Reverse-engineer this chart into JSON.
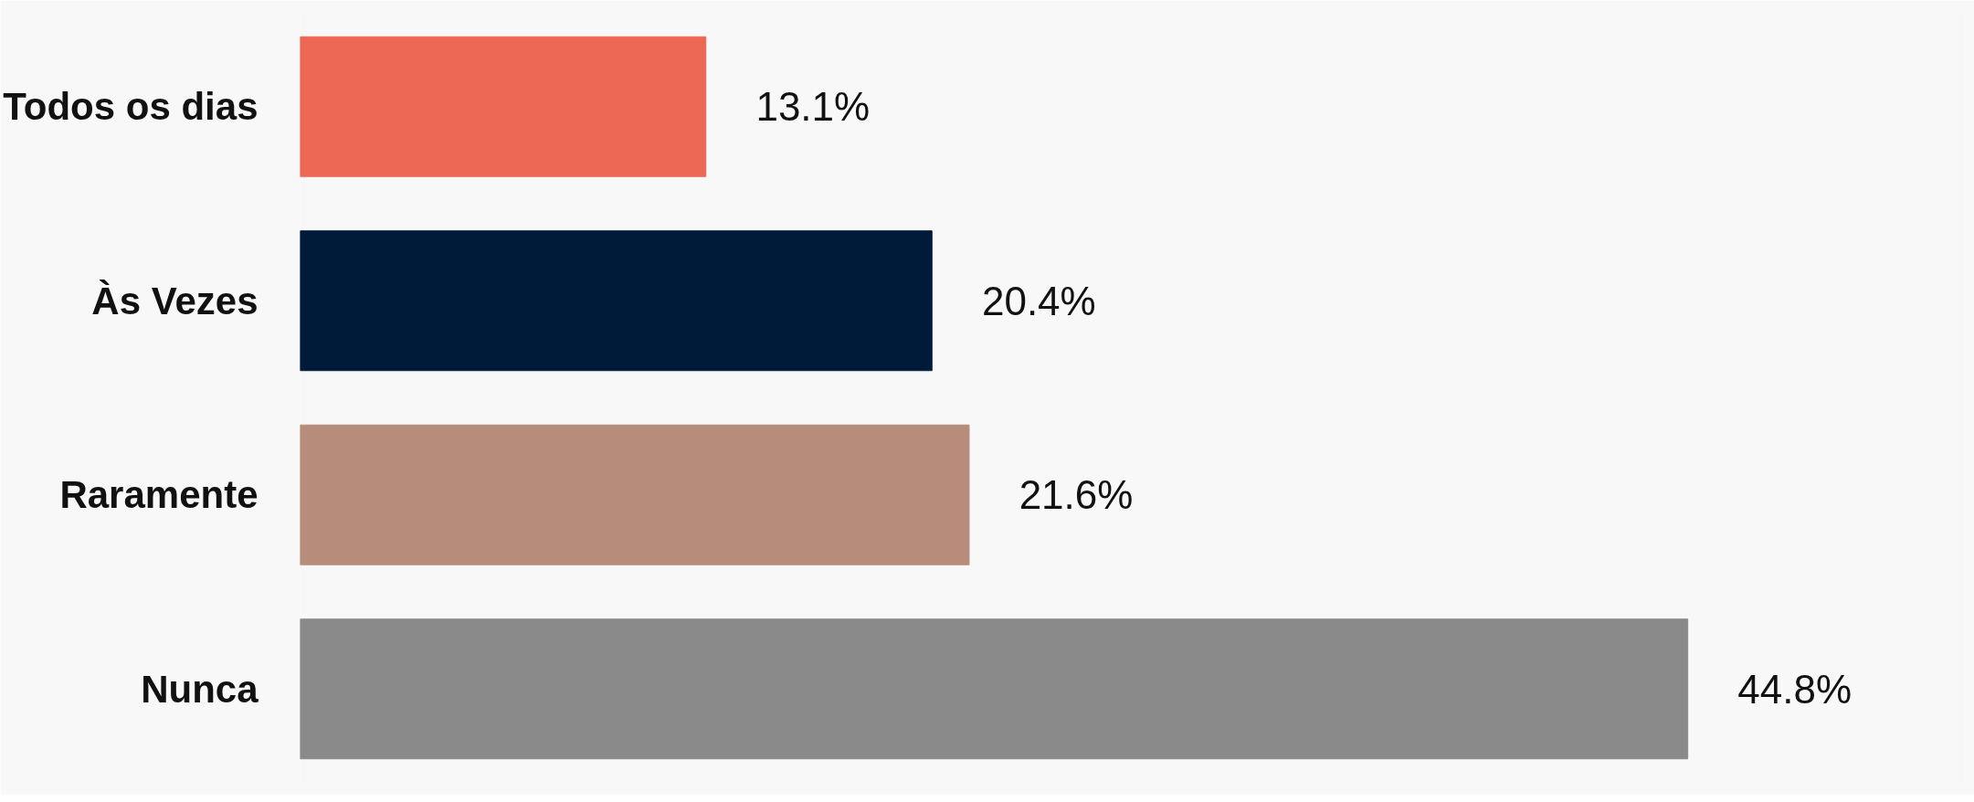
{
  "chart_data": {
    "type": "bar",
    "orientation": "horizontal",
    "categories": [
      "Todos os dias",
      "Às Vezes",
      "Raramente",
      "Nunca"
    ],
    "values": [
      13.1,
      20.4,
      21.6,
      44.8
    ],
    "colors": [
      "#ec6853",
      "#001b3a",
      "#b78c7b",
      "#8a8a8a"
    ],
    "value_labels": [
      "13.1%",
      "20.4%",
      "21.6%",
      "44.8%"
    ]
  }
}
